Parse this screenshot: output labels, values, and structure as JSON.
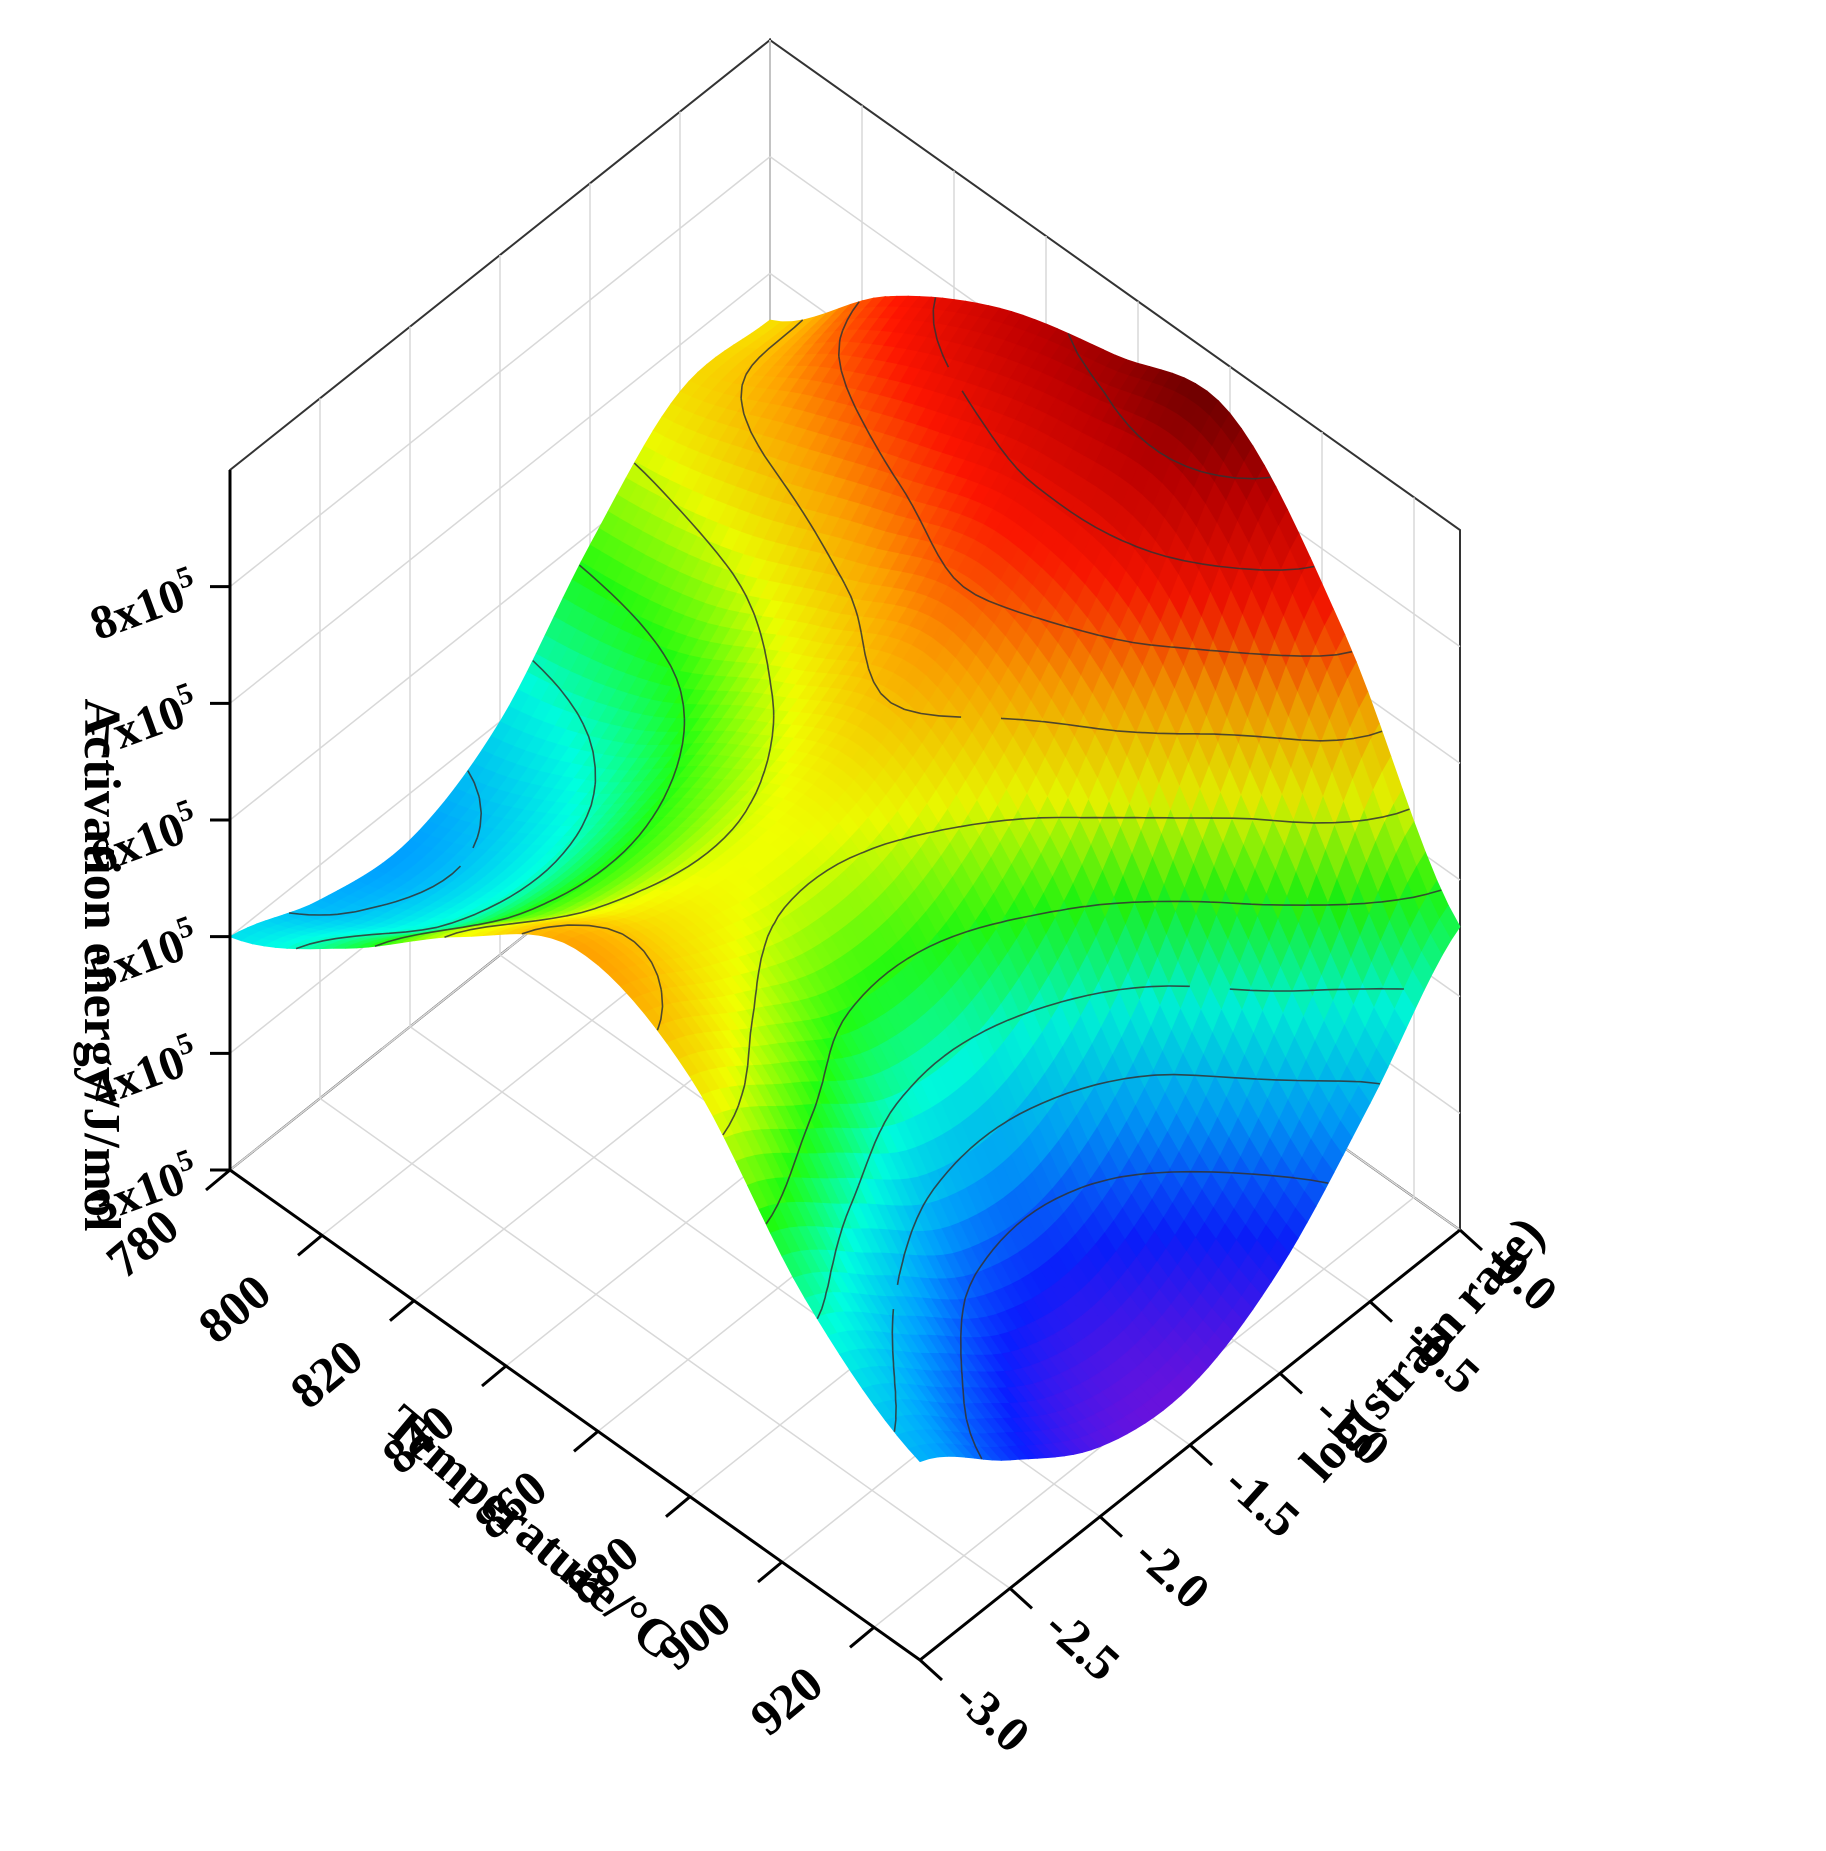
{
  "chart_data": {
    "type": "surface3d",
    "title": "",
    "xlabel": "Temperature/°C",
    "ylabel": "log(strain rate)",
    "zlabel": "Activation energy/J/mol",
    "x": {
      "range": [
        780,
        930
      ],
      "ticks": [
        "780",
        "800",
        "820",
        "840",
        "860",
        "880",
        "900",
        "920"
      ]
    },
    "y": {
      "range": [
        -3.0,
        0.0
      ],
      "ticks": [
        "-3.0",
        "-2.5",
        "-2.0",
        "-1.5",
        "-1.0",
        "-0.5",
        "0.0"
      ]
    },
    "z": {
      "range": [
        300000,
        900000
      ],
      "ticks": [
        {
          "mantissa": "3x10",
          "exp": "5"
        },
        {
          "mantissa": "4x10",
          "exp": "5"
        },
        {
          "mantissa": "5x10",
          "exp": "5"
        },
        {
          "mantissa": "6x10",
          "exp": "5"
        },
        {
          "mantissa": "7x10",
          "exp": "5"
        },
        {
          "mantissa": "8x10",
          "exp": "5"
        }
      ]
    },
    "grid": true,
    "colormap": [
      "#7a10d8",
      "#0a1eff",
      "#00a0ff",
      "#00ffe0",
      "#20ff10",
      "#f0ff00",
      "#ffa000",
      "#ff1500",
      "#c00000",
      "#520000"
    ],
    "contour_color": "#333333",
    "contour_levels": [
      430000,
      480000,
      530000,
      580000,
      630000,
      680000,
      730000,
      780000,
      830000
    ],
    "surface": {
      "temperature": [
        780,
        805,
        830,
        855,
        880,
        905,
        930
      ],
      "log_strain_rate": [
        -3.0,
        -2.5,
        -2.0,
        -1.5,
        -1.0,
        -0.5,
        0.0
      ],
      "activation_energy": [
        [
          500000,
          470000,
          460000,
          500000,
          590000,
          660000,
          660000
        ],
        [
          560000,
          520000,
          510000,
          540000,
          610000,
          700000,
          750000
        ],
        [
          640000,
          600000,
          590000,
          610000,
          660000,
          740000,
          810000
        ],
        [
          700000,
          660000,
          640000,
          650000,
          700000,
          770000,
          840000
        ],
        [
          660000,
          610000,
          560000,
          560000,
          620000,
          740000,
          860000
        ],
        [
          540000,
          480000,
          420000,
          410000,
          470000,
          600000,
          740000
        ],
        [
          470000,
          410000,
          360000,
          350000,
          390000,
          470000,
          560000
        ]
      ]
    }
  }
}
